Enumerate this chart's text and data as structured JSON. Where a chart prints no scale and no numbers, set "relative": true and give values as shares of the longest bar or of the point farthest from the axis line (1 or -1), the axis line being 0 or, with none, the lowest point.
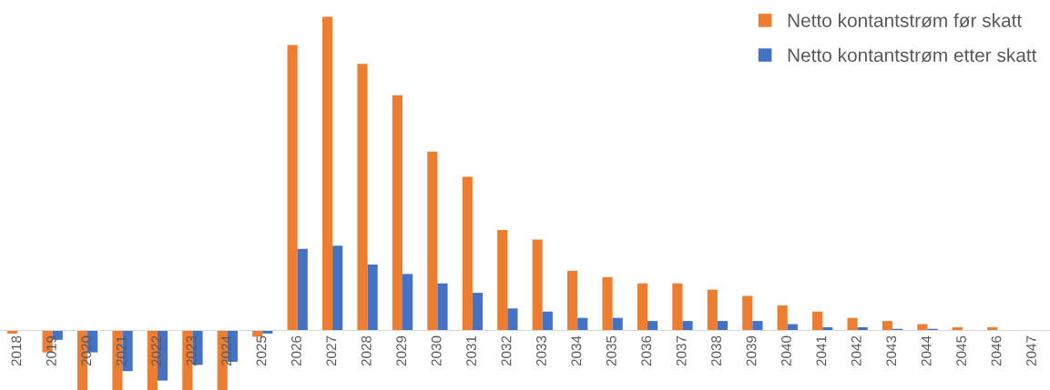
{
  "chart_data": {
    "type": "bar",
    "relative": true,
    "legend": "top right",
    "categories": [
      "2018",
      "2019",
      "2020",
      "2021",
      "2022",
      "2023",
      "2024",
      "2025",
      "2026",
      "2027",
      "2028",
      "2029",
      "2030",
      "2031",
      "2032",
      "2033",
      "2034",
      "2035",
      "2036",
      "2037",
      "2038",
      "2039",
      "2040",
      "2041",
      "2042",
      "2043",
      "2044",
      "2045",
      "2046",
      "2047"
    ],
    "series": [
      {
        "name": "Netto kontantstrøm før skatt",
        "color": "#ed7d31",
        "values": [
          -0.01,
          -0.07,
          -0.19,
          -0.19,
          -0.19,
          -0.19,
          -0.19,
          -0.02,
          0.91,
          1.0,
          0.85,
          0.75,
          0.57,
          0.49,
          0.32,
          0.29,
          0.19,
          0.17,
          0.15,
          0.15,
          0.13,
          0.11,
          0.08,
          0.06,
          0.04,
          0.03,
          0.02,
          0.01,
          0.01,
          0
        ]
      },
      {
        "name": "Netto kontantstrøm etter skatt",
        "color": "#4472c4",
        "values": [
          0,
          -0.03,
          -0.07,
          -0.13,
          -0.16,
          -0.11,
          -0.1,
          -0.01,
          0.26,
          0.27,
          0.21,
          0.18,
          0.15,
          0.12,
          0.07,
          0.06,
          0.04,
          0.04,
          0.03,
          0.03,
          0.03,
          0.03,
          0.02,
          0.01,
          0.01,
          0.005,
          0.005,
          0,
          0,
          0
        ]
      }
    ]
  }
}
